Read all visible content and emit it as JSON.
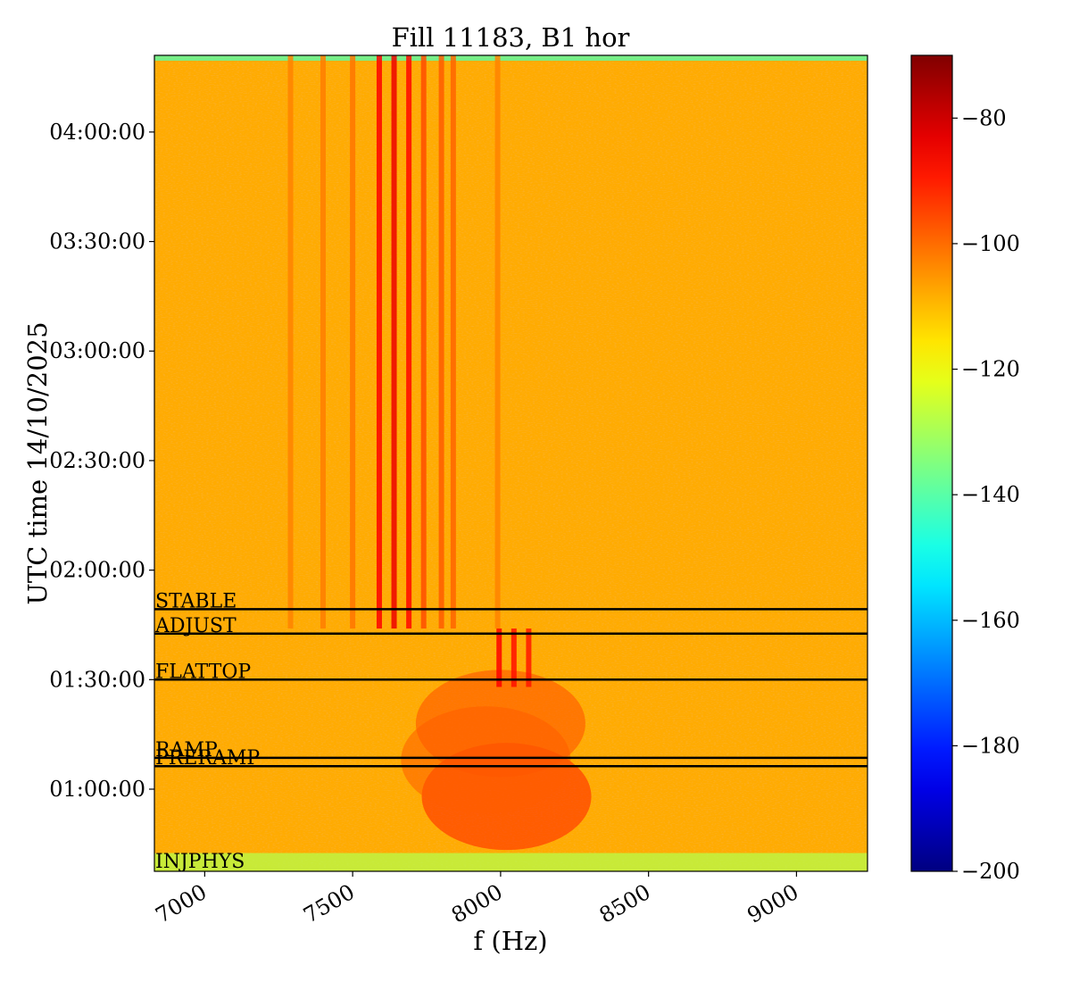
{
  "chart_data": {
    "type": "heatmap",
    "title": "Fill 11183, B1 hor",
    "xlabel": "f (Hz)",
    "ylabel": "UTC time 14/10/2025",
    "xlim": [
      6830,
      9240
    ],
    "ylim_minutes": [
      37.5,
      261.0
    ],
    "x_ticks": [
      {
        "value": 7000,
        "label": "7000"
      },
      {
        "value": 7500,
        "label": "7500"
      },
      {
        "value": 8000,
        "label": "8000"
      },
      {
        "value": 8500,
        "label": "8500"
      },
      {
        "value": 9000,
        "label": "9000"
      }
    ],
    "y_ticks": [
      {
        "minutes": 60,
        "label": "01:00:00"
      },
      {
        "minutes": 90,
        "label": "01:30:00"
      },
      {
        "minutes": 120,
        "label": "02:00:00"
      },
      {
        "minutes": 150,
        "label": "02:30:00"
      },
      {
        "minutes": 180,
        "label": "03:00:00"
      },
      {
        "minutes": 210,
        "label": "03:30:00"
      },
      {
        "minutes": 240,
        "label": "04:00:00"
      }
    ],
    "colorbar": {
      "min": -200,
      "max": -70,
      "colormap": "jet",
      "ticks": [
        {
          "value": -80,
          "label": "−80"
        },
        {
          "value": -100,
          "label": "−100"
        },
        {
          "value": -120,
          "label": "−120"
        },
        {
          "value": -140,
          "label": "−140"
        },
        {
          "value": -160,
          "label": "−160"
        },
        {
          "value": -180,
          "label": "−180"
        },
        {
          "value": -200,
          "label": "−200"
        }
      ]
    },
    "background_level": -108,
    "phases": [
      {
        "name": "INJPHYS",
        "minutes": 38.0
      },
      {
        "name": "PRERAMP",
        "minutes": 66.3
      },
      {
        "name": "RAMP",
        "minutes": 68.6
      },
      {
        "name": "FLATTOP",
        "minutes": 90.0
      },
      {
        "name": "ADJUST",
        "minutes": 102.6
      },
      {
        "name": "STABLE",
        "minutes": 109.3
      }
    ],
    "lines": [
      {
        "f0": 7590,
        "t0": 104,
        "t1": 261,
        "level": -86
      },
      {
        "f0": 7640,
        "t0": 104,
        "t1": 261,
        "level": -84
      },
      {
        "f0": 7690,
        "t0": 104,
        "t1": 261,
        "level": -87
      },
      {
        "f0": 7740,
        "t0": 104,
        "t1": 261,
        "level": -96
      },
      {
        "f0": 7800,
        "t0": 104,
        "t1": 261,
        "level": -98
      },
      {
        "f0": 7840,
        "t0": 104,
        "t1": 261,
        "level": -99
      },
      {
        "f0": 7500,
        "t0": 104,
        "t1": 261,
        "level": -101
      },
      {
        "f0": 7400,
        "t0": 104,
        "t1": 261,
        "level": -102
      },
      {
        "f0": 7290,
        "t0": 104,
        "t1": 261,
        "level": -103
      },
      {
        "f0": 7995,
        "t0": 88,
        "t1": 104,
        "level": -86
      },
      {
        "f0": 8045,
        "t0": 88,
        "t1": 104,
        "level": -88
      },
      {
        "f0": 8095,
        "t0": 88,
        "t1": 104,
        "level": -89
      },
      {
        "f0": 7990,
        "t0": 104,
        "t1": 261,
        "level": -103
      }
    ],
    "blobs": [
      {
        "f": 8020,
        "t": 58,
        "level": -90
      },
      {
        "f": 8000,
        "t": 78,
        "level": -96
      },
      {
        "f": 7950,
        "t": 68,
        "level": -98
      }
    ]
  }
}
